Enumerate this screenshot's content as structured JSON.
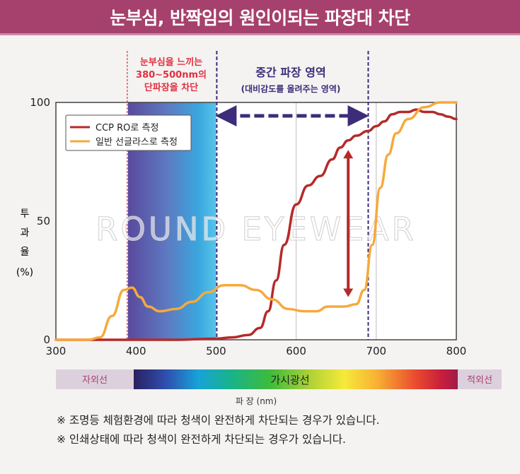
{
  "header": {
    "title": "눈부심, 반짝임의 원인이되는 파장대 차단"
  },
  "annotations": {
    "glare_band": [
      "눈부심을 느끼는",
      "380~500nm의",
      "단파장을 차단"
    ],
    "mid_band_title": "중간 파장 영역",
    "mid_band_sub": "(대비감도를 올려주는 영역)"
  },
  "watermark": "ROUND EYEWEAR",
  "spectrum_bar": {
    "uv_label": "자외선",
    "visible_label": "가시광선",
    "ir_label": "적외선"
  },
  "notes": [
    "※ 조명등 체험환경에 따라 청색이 완전하게 차단되는 경우가 있습니다.",
    "※ 인쇄상태에 따라 청색이 완전하게 차단되는 경우가 있습니다."
  ],
  "colors": {
    "banner": "#a6406c",
    "ccp_line": "#b52a2a",
    "general_line": "#f7a93b",
    "arrow_navy": "#3d2c7a",
    "arrow_red": "#b52a2a",
    "cut_line_red": "#e03040"
  },
  "chart_data": {
    "type": "line",
    "xlabel": "파 장 (nm)",
    "ylabel": [
      "투",
      "과",
      "율",
      "(%)"
    ],
    "xlim": [
      300,
      800
    ],
    "ylim": [
      0,
      100
    ],
    "xticks": [
      300,
      400,
      500,
      600,
      700,
      800
    ],
    "yticks": [
      0,
      50,
      100
    ],
    "grid_x": [
      600,
      700
    ],
    "legend_position": "top-left",
    "series": [
      {
        "name": "CCP RO로 측정",
        "color": "#b52a2a",
        "x": [
          300,
          350,
          400,
          450,
          500,
          520,
          540,
          555,
          565,
          575,
          585,
          600,
          615,
          630,
          645,
          655,
          665,
          675,
          690,
          700,
          710,
          720,
          730,
          740,
          750,
          760,
          770,
          780,
          790,
          800
        ],
        "y": [
          0,
          0,
          0,
          0,
          0.5,
          1,
          2,
          5,
          12,
          25,
          40,
          57,
          65,
          69,
          76,
          81,
          84,
          86,
          88,
          90,
          92,
          95,
          96,
          96,
          97,
          96,
          96,
          95,
          94,
          93
        ]
      },
      {
        "name": "일반 선글라스로 측정",
        "color": "#f7a93b",
        "x": [
          300,
          340,
          355,
          370,
          385,
          395,
          405,
          415,
          430,
          450,
          470,
          490,
          510,
          530,
          550,
          570,
          590,
          610,
          625,
          640,
          660,
          675,
          685,
          695,
          705,
          715,
          725,
          740,
          760,
          780,
          800
        ],
        "y": [
          0,
          0,
          1,
          10,
          21,
          22,
          18,
          14,
          12,
          13,
          16,
          20,
          23,
          23,
          21,
          17,
          13,
          12,
          12,
          14,
          14,
          15,
          21,
          40,
          64,
          78,
          87,
          93,
          98,
          100,
          100
        ]
      }
    ]
  }
}
